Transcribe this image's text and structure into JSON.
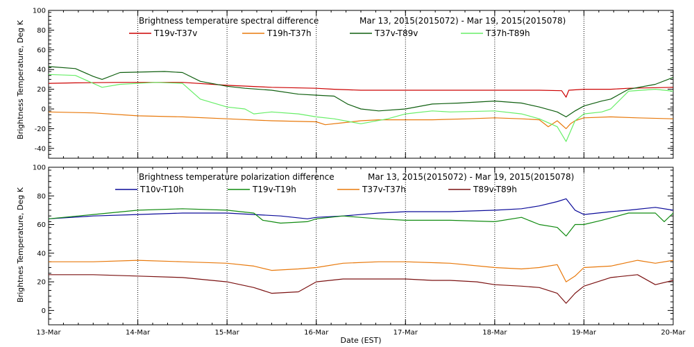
{
  "chart_data": [
    {
      "type": "line",
      "title": "Brightness temperature spectral difference",
      "date_range": "Mar 13, 2015(2015072) - Mar 19, 2015(2015078)",
      "ylabel": "Brightness Temperature, Deg K",
      "xlabel": "",
      "xlim": [
        0,
        7
      ],
      "ylim": [
        -50,
        100
      ],
      "yticks": [
        -40,
        -20,
        0,
        20,
        40,
        60,
        80,
        100
      ],
      "grid": "vertical dotted at day boundaries",
      "legend_placement": "top",
      "series": [
        {
          "name": "T19v-T37v",
          "color": "#cc0000",
          "points": [
            [
              0,
              26
            ],
            [
              0.3,
              26.5
            ],
            [
              0.8,
              27
            ],
            [
              1.5,
              27
            ],
            [
              2,
              24
            ],
            [
              2.5,
              22
            ],
            [
              3,
              21
            ],
            [
              3.2,
              20
            ],
            [
              3.5,
              19
            ],
            [
              4,
              19
            ],
            [
              4.5,
              19
            ],
            [
              5,
              19
            ],
            [
              5.5,
              19
            ],
            [
              5.75,
              18.5
            ],
            [
              5.8,
              12
            ],
            [
              5.83,
              19
            ],
            [
              6,
              20
            ],
            [
              6.3,
              20
            ],
            [
              6.5,
              21
            ],
            [
              7,
              22
            ]
          ]
        },
        {
          "name": "T19h-T37h",
          "color": "#e8780a",
          "points": [
            [
              0,
              -3
            ],
            [
              0.5,
              -4
            ],
            [
              1,
              -7
            ],
            [
              1.5,
              -8
            ],
            [
              2,
              -10
            ],
            [
              2.5,
              -12
            ],
            [
              3,
              -13
            ],
            [
              3.1,
              -16
            ],
            [
              3.3,
              -14
            ],
            [
              3.5,
              -12
            ],
            [
              3.7,
              -11
            ],
            [
              4,
              -11
            ],
            [
              4.3,
              -11
            ],
            [
              4.7,
              -10
            ],
            [
              5,
              -9
            ],
            [
              5.3,
              -10
            ],
            [
              5.5,
              -11
            ],
            [
              5.6,
              -18
            ],
            [
              5.7,
              -12
            ],
            [
              5.8,
              -20
            ],
            [
              5.85,
              -15
            ],
            [
              5.9,
              -12
            ],
            [
              6,
              -9
            ],
            [
              6.3,
              -8
            ],
            [
              6.6,
              -9
            ],
            [
              7,
              -10
            ]
          ]
        },
        {
          "name": "T37v-T89v",
          "color": "#0e5e0e",
          "points": [
            [
              0,
              43
            ],
            [
              0.3,
              41
            ],
            [
              0.5,
              33
            ],
            [
              0.6,
              30
            ],
            [
              0.8,
              37
            ],
            [
              1.3,
              38
            ],
            [
              1.5,
              37
            ],
            [
              1.7,
              28
            ],
            [
              2,
              23
            ],
            [
              2.2,
              21
            ],
            [
              2.5,
              19
            ],
            [
              2.8,
              15
            ],
            [
              3,
              14
            ],
            [
              3.2,
              13
            ],
            [
              3.35,
              5
            ],
            [
              3.5,
              0
            ],
            [
              3.7,
              -2
            ],
            [
              4,
              0
            ],
            [
              4.3,
              5
            ],
            [
              4.6,
              6
            ],
            [
              5,
              8
            ],
            [
              5.3,
              6
            ],
            [
              5.5,
              2
            ],
            [
              5.7,
              -3
            ],
            [
              5.8,
              -8
            ],
            [
              5.9,
              -2
            ],
            [
              6,
              3
            ],
            [
              6.2,
              8
            ],
            [
              6.3,
              10
            ],
            [
              6.5,
              20
            ],
            [
              6.8,
              25
            ],
            [
              7,
              32
            ]
          ]
        },
        {
          "name": "T37h-T89h",
          "color": "#66ee66",
          "points": [
            [
              0,
              35
            ],
            [
              0.3,
              34
            ],
            [
              0.6,
              22
            ],
            [
              0.8,
              25
            ],
            [
              1.2,
              27
            ],
            [
              1.5,
              26
            ],
            [
              1.7,
              10
            ],
            [
              2,
              2
            ],
            [
              2.2,
              0
            ],
            [
              2.3,
              -5
            ],
            [
              2.5,
              -3
            ],
            [
              2.8,
              -5
            ],
            [
              3,
              -8
            ],
            [
              3.2,
              -10
            ],
            [
              3.5,
              -15
            ],
            [
              3.8,
              -10
            ],
            [
              4,
              -5
            ],
            [
              4.3,
              -2
            ],
            [
              4.5,
              -3
            ],
            [
              5,
              -2
            ],
            [
              5.3,
              -5
            ],
            [
              5.5,
              -10
            ],
            [
              5.7,
              -18
            ],
            [
              5.8,
              -33
            ],
            [
              5.9,
              -12
            ],
            [
              6,
              -5
            ],
            [
              6.2,
              -3
            ],
            [
              6.3,
              0
            ],
            [
              6.5,
              18
            ],
            [
              6.8,
              20
            ],
            [
              7,
              18
            ]
          ]
        }
      ]
    },
    {
      "type": "line",
      "title": "Brightness temperature polarization difference",
      "date_range": "Mar 13, 2015(2015072) - Mar 19, 2015(2015078)",
      "ylabel": "Brightnes Temperature, Deg K",
      "xlabel": "Date (EST)",
      "xlim": [
        0,
        7
      ],
      "ylim": [
        -10,
        100
      ],
      "yticks": [
        0,
        20,
        40,
        60,
        80,
        100
      ],
      "xticks": [
        "13-Mar",
        "14-Mar",
        "15-Mar",
        "16-Mar",
        "17-Mar",
        "18-Mar",
        "19-Mar",
        "20-Mar"
      ],
      "grid": "vertical dotted at day boundaries",
      "legend_placement": "top",
      "series": [
        {
          "name": "T10v-T10h",
          "color": "#0a0a99",
          "points": [
            [
              0,
              64
            ],
            [
              0.5,
              66
            ],
            [
              1,
              67
            ],
            [
              1.5,
              68
            ],
            [
              2,
              68
            ],
            [
              2.3,
              67
            ],
            [
              2.6,
              66
            ],
            [
              2.9,
              64
            ],
            [
              3,
              65
            ],
            [
              3.3,
              66
            ],
            [
              3.7,
              68
            ],
            [
              4,
              69
            ],
            [
              4.5,
              69
            ],
            [
              5,
              70
            ],
            [
              5.3,
              71
            ],
            [
              5.5,
              73
            ],
            [
              5.7,
              76
            ],
            [
              5.8,
              78
            ],
            [
              5.9,
              70
            ],
            [
              6,
              67
            ],
            [
              6.3,
              69
            ],
            [
              6.5,
              70
            ],
            [
              6.8,
              72
            ],
            [
              7,
              70
            ]
          ]
        },
        {
          "name": "T19v-T19h",
          "color": "#0f8a0f",
          "points": [
            [
              0,
              64
            ],
            [
              0.5,
              67
            ],
            [
              1,
              70
            ],
            [
              1.5,
              71
            ],
            [
              2,
              70
            ],
            [
              2.3,
              68
            ],
            [
              2.4,
              63
            ],
            [
              2.6,
              61
            ],
            [
              2.9,
              62
            ],
            [
              3,
              64
            ],
            [
              3.3,
              66
            ],
            [
              3.7,
              64
            ],
            [
              4,
              63
            ],
            [
              4.5,
              63
            ],
            [
              5,
              62
            ],
            [
              5.3,
              65
            ],
            [
              5.5,
              60
            ],
            [
              5.7,
              58
            ],
            [
              5.8,
              52
            ],
            [
              5.9,
              60
            ],
            [
              6,
              60
            ],
            [
              6.2,
              63
            ],
            [
              6.5,
              68
            ],
            [
              6.8,
              68
            ],
            [
              6.9,
              62
            ],
            [
              7,
              68
            ]
          ]
        },
        {
          "name": "T37v-T37h",
          "color": "#e8780a",
          "points": [
            [
              0,
              34
            ],
            [
              0.5,
              34
            ],
            [
              1,
              35
            ],
            [
              1.5,
              34
            ],
            [
              2,
              33
            ],
            [
              2.3,
              31
            ],
            [
              2.5,
              28
            ],
            [
              2.8,
              29
            ],
            [
              3,
              30
            ],
            [
              3.3,
              33
            ],
            [
              3.7,
              34
            ],
            [
              4,
              34
            ],
            [
              4.5,
              33
            ],
            [
              5,
              30
            ],
            [
              5.3,
              29
            ],
            [
              5.5,
              30
            ],
            [
              5.7,
              32
            ],
            [
              5.8,
              20
            ],
            [
              5.9,
              24
            ],
            [
              6,
              30
            ],
            [
              6.3,
              31
            ],
            [
              6.6,
              35
            ],
            [
              6.8,
              33
            ],
            [
              7,
              35
            ]
          ]
        },
        {
          "name": "T89v-T89h",
          "color": "#7a1010",
          "points": [
            [
              0,
              25
            ],
            [
              0.5,
              25
            ],
            [
              1,
              24
            ],
            [
              1.5,
              23
            ],
            [
              2,
              20
            ],
            [
              2.3,
              16
            ],
            [
              2.5,
              12
            ],
            [
              2.8,
              13
            ],
            [
              3,
              20
            ],
            [
              3.3,
              22
            ],
            [
              3.7,
              22
            ],
            [
              4,
              22
            ],
            [
              4.3,
              21
            ],
            [
              4.5,
              21
            ],
            [
              4.8,
              20
            ],
            [
              5,
              18
            ],
            [
              5.3,
              17
            ],
            [
              5.5,
              16
            ],
            [
              5.7,
              12
            ],
            [
              5.8,
              5
            ],
            [
              5.9,
              12
            ],
            [
              6,
              17
            ],
            [
              6.3,
              23
            ],
            [
              6.6,
              25
            ],
            [
              6.8,
              18
            ],
            [
              7,
              21
            ]
          ]
        }
      ]
    }
  ]
}
